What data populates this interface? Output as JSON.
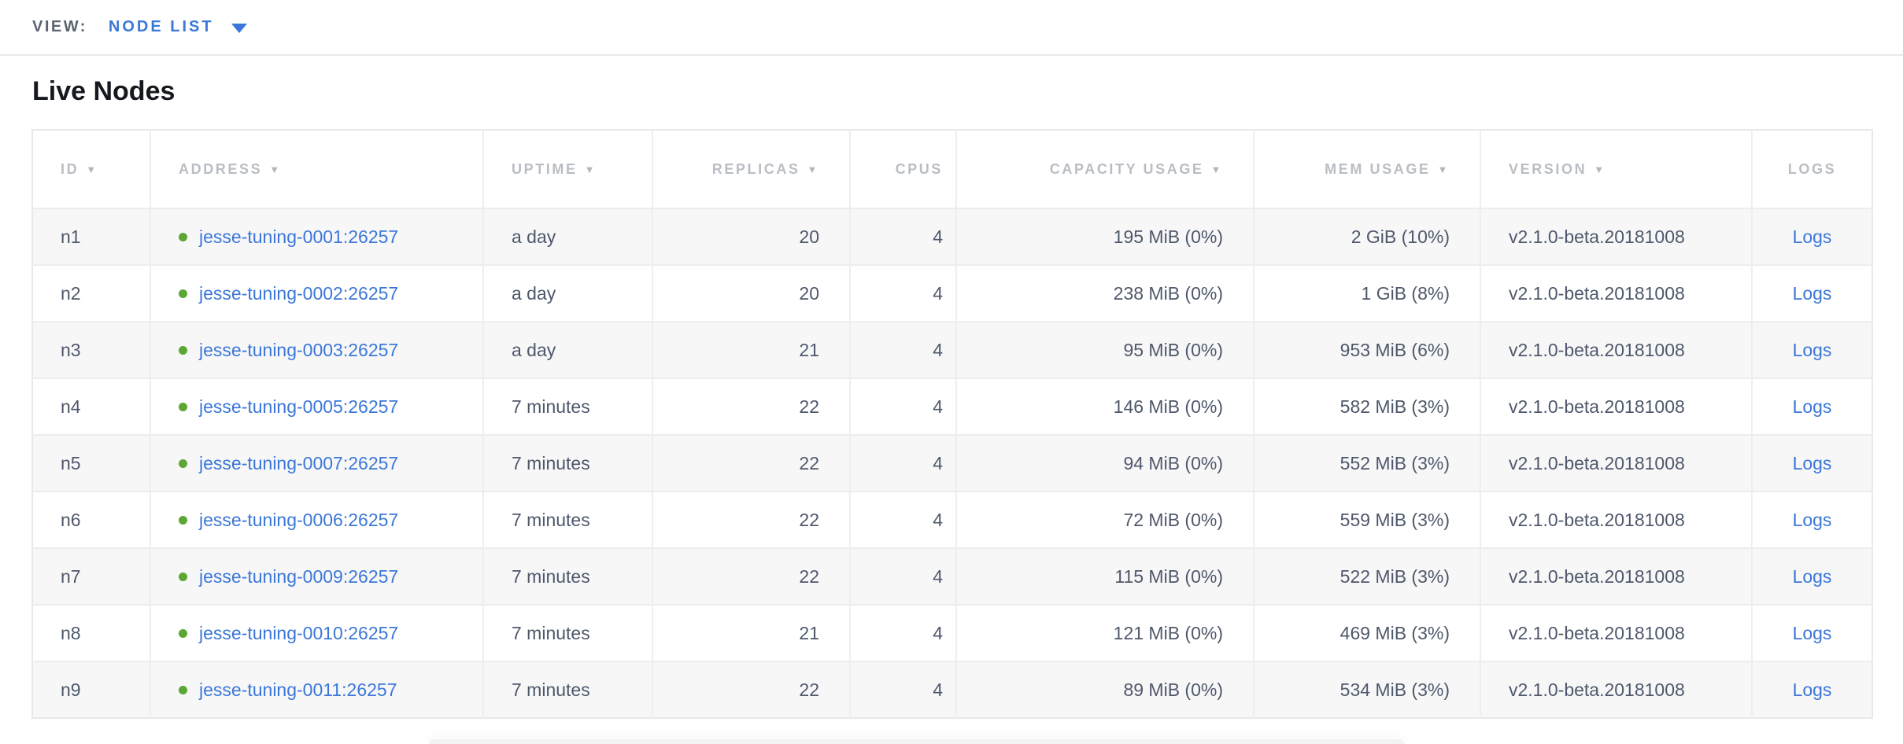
{
  "view_bar": {
    "label": "VIEW:",
    "selected": "NODE LIST"
  },
  "page": {
    "title": "Live Nodes"
  },
  "colors": {
    "accent_blue": "#3b77d8",
    "link_blue": "#3b77d8",
    "node_live_green": "#5ca733",
    "header_gray": "#b9bdc4",
    "body_text": "#4e586b",
    "row_alt_bg": "#f7f7f8"
  },
  "table": {
    "sort_icon_glyph": "▼",
    "columns": [
      {
        "key": "id",
        "label": "ID",
        "sorted": true
      },
      {
        "key": "address",
        "label": "ADDRESS",
        "sorted": true
      },
      {
        "key": "uptime",
        "label": "UPTIME",
        "sorted": true
      },
      {
        "key": "replicas",
        "label": "REPLICAS",
        "sorted": true
      },
      {
        "key": "cpus",
        "label": "CPUS",
        "sorted": false
      },
      {
        "key": "capacity",
        "label": "CAPACITY USAGE",
        "sorted": true
      },
      {
        "key": "mem",
        "label": "MEM USAGE",
        "sorted": true
      },
      {
        "key": "version",
        "label": "VERSION",
        "sorted": true
      },
      {
        "key": "logs",
        "label": "LOGS",
        "sorted": false
      }
    ],
    "rows": [
      {
        "id": "n1",
        "status": "live",
        "address": "jesse-tuning-0001:26257",
        "uptime": "a day",
        "replicas": "20",
        "cpus": "4",
        "capacity": "195 MiB (0%)",
        "mem": "2 GiB (10%)",
        "version": "v2.1.0-beta.20181008",
        "logs": "Logs"
      },
      {
        "id": "n2",
        "status": "live",
        "address": "jesse-tuning-0002:26257",
        "uptime": "a day",
        "replicas": "20",
        "cpus": "4",
        "capacity": "238 MiB (0%)",
        "mem": "1 GiB (8%)",
        "version": "v2.1.0-beta.20181008",
        "logs": "Logs"
      },
      {
        "id": "n3",
        "status": "live",
        "address": "jesse-tuning-0003:26257",
        "uptime": "a day",
        "replicas": "21",
        "cpus": "4",
        "capacity": "95 MiB (0%)",
        "mem": "953 MiB (6%)",
        "version": "v2.1.0-beta.20181008",
        "logs": "Logs"
      },
      {
        "id": "n4",
        "status": "live",
        "address": "jesse-tuning-0005:26257",
        "uptime": "7 minutes",
        "replicas": "22",
        "cpus": "4",
        "capacity": "146 MiB (0%)",
        "mem": "582 MiB (3%)",
        "version": "v2.1.0-beta.20181008",
        "logs": "Logs"
      },
      {
        "id": "n5",
        "status": "live",
        "address": "jesse-tuning-0007:26257",
        "uptime": "7 minutes",
        "replicas": "22",
        "cpus": "4",
        "capacity": "94 MiB (0%)",
        "mem": "552 MiB (3%)",
        "version": "v2.1.0-beta.20181008",
        "logs": "Logs"
      },
      {
        "id": "n6",
        "status": "live",
        "address": "jesse-tuning-0006:26257",
        "uptime": "7 minutes",
        "replicas": "22",
        "cpus": "4",
        "capacity": "72 MiB (0%)",
        "mem": "559 MiB (3%)",
        "version": "v2.1.0-beta.20181008",
        "logs": "Logs"
      },
      {
        "id": "n7",
        "status": "live",
        "address": "jesse-tuning-0009:26257",
        "uptime": "7 minutes",
        "replicas": "22",
        "cpus": "4",
        "capacity": "115 MiB (0%)",
        "mem": "522 MiB (3%)",
        "version": "v2.1.0-beta.20181008",
        "logs": "Logs"
      },
      {
        "id": "n8",
        "status": "live",
        "address": "jesse-tuning-0010:26257",
        "uptime": "7 minutes",
        "replicas": "21",
        "cpus": "4",
        "capacity": "121 MiB (0%)",
        "mem": "469 MiB (3%)",
        "version": "v2.1.0-beta.20181008",
        "logs": "Logs"
      },
      {
        "id": "n9",
        "status": "live",
        "address": "jesse-tuning-0011:26257",
        "uptime": "7 minutes",
        "replicas": "22",
        "cpus": "4",
        "capacity": "89 MiB (0%)",
        "mem": "534 MiB (3%)",
        "version": "v2.1.0-beta.20181008",
        "logs": "Logs"
      }
    ]
  }
}
